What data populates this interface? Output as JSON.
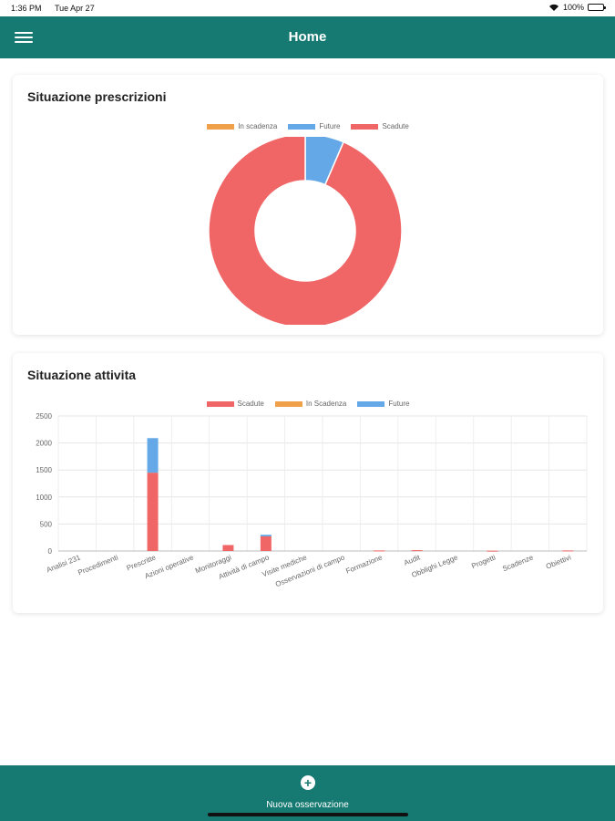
{
  "status_bar": {
    "time": "1:36 PM",
    "date": "Tue Apr 27",
    "battery": "100%"
  },
  "app_bar": {
    "title": "Home",
    "menu_icon": "hamburger-menu-icon"
  },
  "colors": {
    "primary": "#177a72",
    "scadute": "#f06666",
    "future": "#64a8e8",
    "in_scadenza": "#f0a048"
  },
  "prescrizioni": {
    "title": "Situazione prescrizioni",
    "chart_data": {
      "type": "pie",
      "labels": [
        "In scadenza",
        "Future",
        "Scadute"
      ],
      "values": [
        0,
        6.5,
        93.5
      ],
      "colors": [
        "#f0a048",
        "#64a8e8",
        "#f06666"
      ],
      "legend": "top"
    }
  },
  "attivita": {
    "title": "Situazione attivita",
    "chart_data": {
      "type": "bar",
      "stacked": true,
      "categories": [
        "Analisi 231",
        "Procedimenti",
        "Prescritte",
        "Azioni operative",
        "Monitoraggi",
        "Attività di campo",
        "Visite mediche",
        "Osservazioni di campo",
        "Formazione",
        "Audit",
        "Obblighi Legge",
        "Progetti",
        "Scadenze",
        "Obiettivi"
      ],
      "series": [
        {
          "name": "Scadute",
          "color": "#f06666",
          "values": [
            0,
            0,
            1450,
            0,
            110,
            270,
            0,
            0,
            10,
            15,
            0,
            5,
            0,
            10
          ]
        },
        {
          "name": "In Scadenza",
          "color": "#f0a048",
          "values": [
            0,
            0,
            0,
            0,
            0,
            0,
            0,
            0,
            0,
            0,
            0,
            0,
            0,
            0
          ]
        },
        {
          "name": "Future",
          "color": "#64a8e8",
          "values": [
            0,
            0,
            640,
            0,
            0,
            30,
            0,
            0,
            0,
            0,
            0,
            0,
            0,
            0
          ]
        }
      ],
      "y_ticks": [
        0,
        500,
        1000,
        1500,
        2000,
        2500
      ],
      "ylim": [
        0,
        2500
      ],
      "grid": true,
      "legend": "top"
    }
  },
  "bottom_bar": {
    "action_label": "Nuova osservazione",
    "action_icon": "plus-circle-icon"
  }
}
